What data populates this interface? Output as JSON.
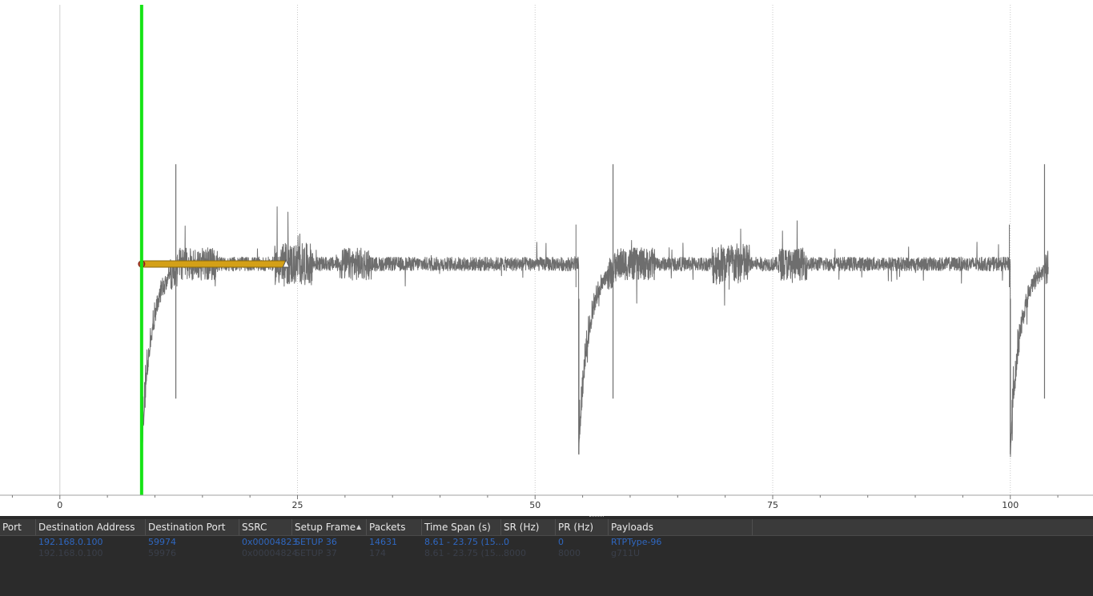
{
  "colors": {
    "trace": "#6e6e6e",
    "cursor": "#16e316",
    "interval_bar": "#d4a017",
    "grid": "#c8c8c8",
    "table_bg": "#2b2b2b",
    "header_bg": "#3a3a3a",
    "row_text_selected": "#2f67c0"
  },
  "graph": {
    "x_axis_ticks": [
      "0",
      "25",
      "50",
      "75",
      "100"
    ]
  },
  "chart_data": {
    "type": "line",
    "x_tick_values": [
      0,
      25,
      50,
      75,
      100
    ],
    "xlim": [
      -6.3,
      108.7
    ],
    "ylim": [
      -1.0,
      1.0
    ],
    "grid": "vertical dotted at major ticks",
    "cursor_x": 8.6,
    "interval_bar": {
      "x_start": 8.6,
      "x_end": 23.8,
      "y": 0.0
    },
    "series": [
      {
        "description_note": "",
        "drops": [
          8.6,
          54.6,
          100.0
        ],
        "spikes_up": [
          12.2,
          58.2,
          103.6
        ],
        "x": [
          8.6,
          104.0
        ]
      }
    ]
  },
  "table": {
    "sort_indicator_icon": "sort-ascending-icon",
    "columns": [
      "Port",
      "Destination Address",
      "Destination Port",
      "SSRC",
      "Setup Frame",
      "Packets",
      "Time Span (s)",
      "SR (Hz)",
      "PR (Hz)",
      "Payloads"
    ],
    "rows": [
      [
        "",
        "192.168.0.100",
        "59974",
        "0x00004823",
        "SETUP 36",
        "14631",
        "8.61 - 23.75 (15....",
        "0",
        "0",
        "RTPType-96"
      ],
      [
        "",
        "192.168.0.100",
        "59976",
        "0x00004824",
        "SETUP 37",
        "174",
        "8.61 - 23.75 (15....",
        "8000",
        "8000",
        "g711U"
      ]
    ]
  }
}
